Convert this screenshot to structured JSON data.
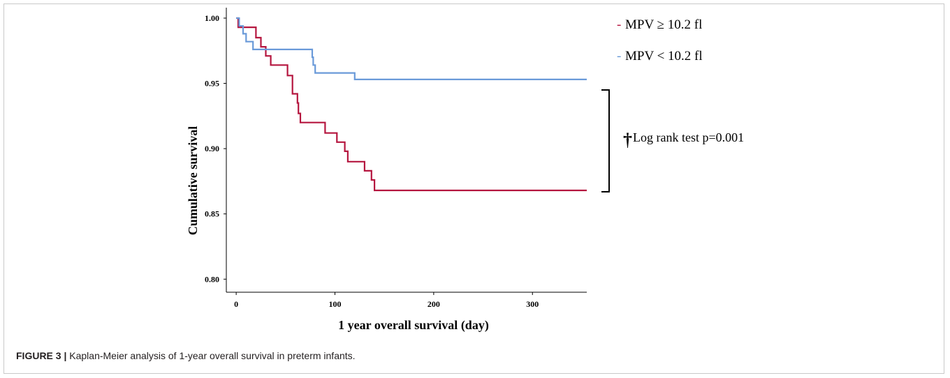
{
  "caption": {
    "label": "FIGURE 3 |",
    "text": " Kaplan-Meier analysis of 1-year overall survival in preterm infants."
  },
  "annotation": {
    "dagger": "†",
    "text": "Log rank test p=0.001"
  },
  "colors": {
    "high_mpv": "#b5163f",
    "low_mpv": "#6a9ad9",
    "axis": "#000000"
  },
  "chart_data": {
    "type": "line",
    "title": "",
    "xlabel": "1 year overall survival (day)",
    "ylabel": "Cumulative survival",
    "xlim": [
      -10,
      355
    ],
    "ylim": [
      0.79,
      1.008
    ],
    "x_ticks": [
      0,
      100,
      200,
      300
    ],
    "y_ticks": [
      0.8,
      0.85,
      0.9,
      0.95,
      1.0
    ],
    "x_tick_labels": [
      "0",
      "100",
      "200",
      "300"
    ],
    "y_tick_labels": [
      "0.80",
      "0.85",
      "0.90",
      "0.95",
      "1.00"
    ],
    "step": true,
    "legend_position": "top-right",
    "series": [
      {
        "name": "MPV ≥ 10.2 fl",
        "color": "#b5163f",
        "x": [
          0,
          2,
          12,
          20,
          25,
          30,
          35,
          52,
          57,
          62,
          63,
          65,
          90,
          102,
          110,
          113,
          130,
          137,
          140,
          355
        ],
        "y": [
          1.0,
          0.993,
          0.993,
          0.985,
          0.978,
          0.971,
          0.964,
          0.956,
          0.942,
          0.935,
          0.927,
          0.92,
          0.912,
          0.905,
          0.898,
          0.89,
          0.883,
          0.876,
          0.868,
          0.868
        ]
      },
      {
        "name": "MPV < 10.2 fl",
        "color": "#6a9ad9",
        "x": [
          0,
          3,
          7,
          10,
          17,
          22,
          77,
          78,
          80,
          120,
          355
        ],
        "y": [
          1.0,
          0.994,
          0.988,
          0.982,
          0.976,
          0.976,
          0.97,
          0.964,
          0.958,
          0.953,
          0.953
        ]
      }
    ]
  }
}
